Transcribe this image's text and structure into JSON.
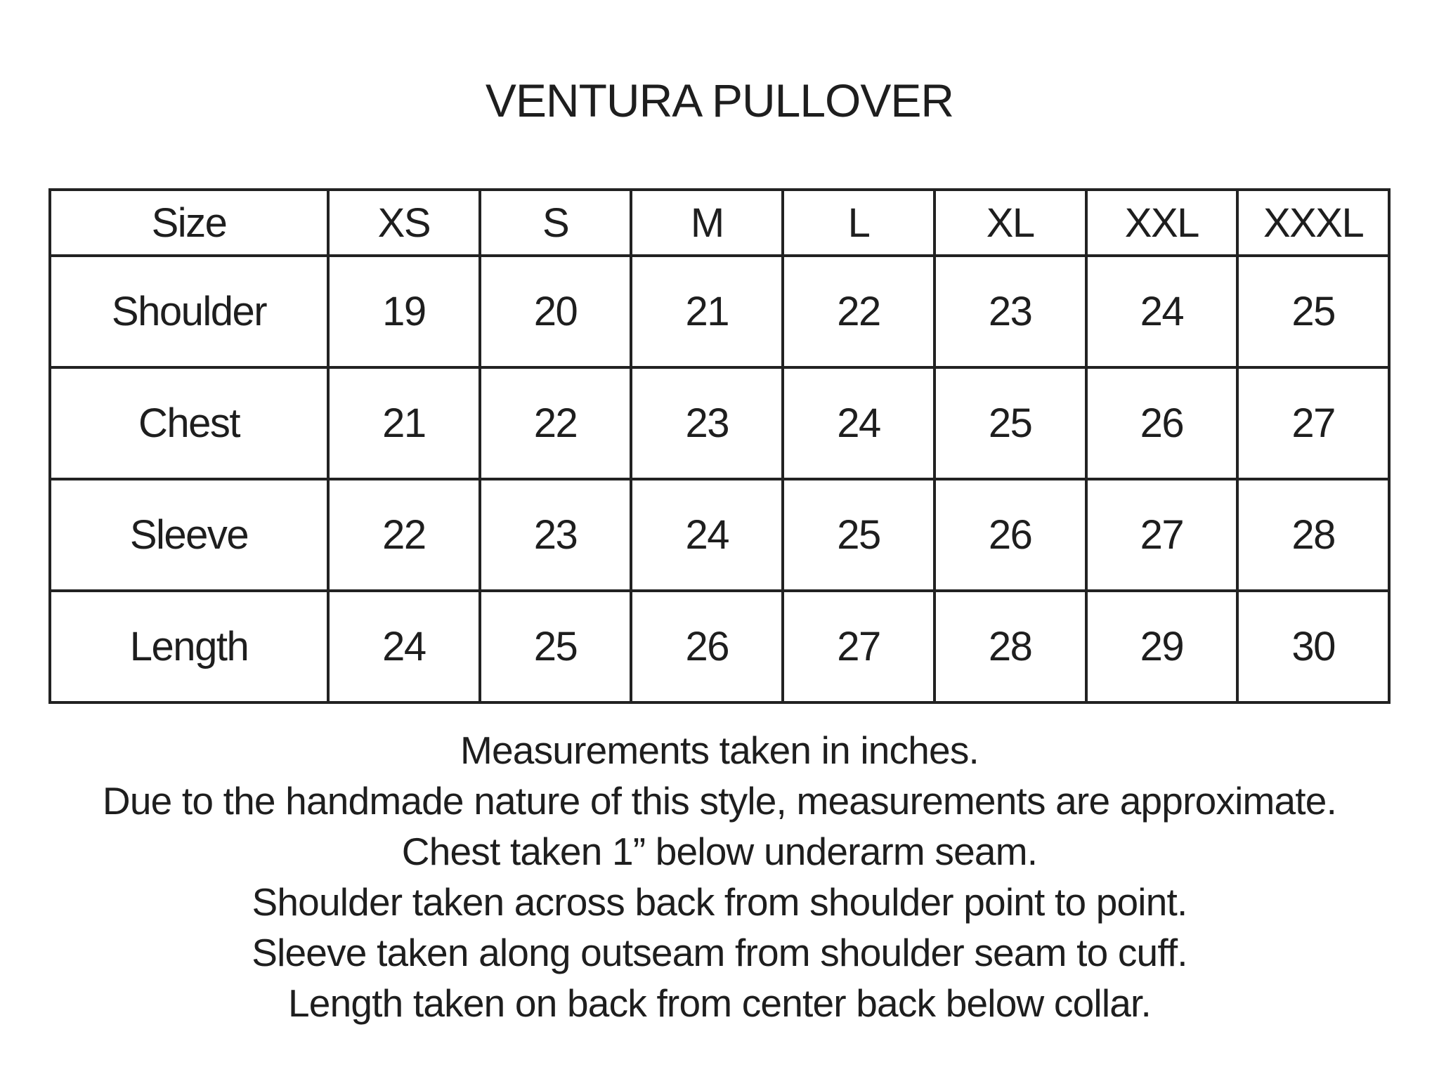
{
  "title": "VENTURA PULLOVER",
  "table": {
    "header": [
      "Size",
      "XS",
      "S",
      "M",
      "L",
      "XL",
      "XXL",
      "XXXL"
    ],
    "rows": [
      [
        "Shoulder",
        "19",
        "20",
        "21",
        "22",
        "23",
        "24",
        "25"
      ],
      [
        "Chest",
        "21",
        "22",
        "23",
        "24",
        "25",
        "26",
        "27"
      ],
      [
        "Sleeve",
        "22",
        "23",
        "24",
        "25",
        "26",
        "27",
        "28"
      ],
      [
        "Length",
        "24",
        "25",
        "26",
        "27",
        "28",
        "29",
        "30"
      ]
    ]
  },
  "notes": [
    "Measurements taken in inches.",
    "Due to the handmade nature of this style, measurements are approximate.",
    "Chest taken 1” below underarm seam.",
    "Shoulder taken across back from shoulder point to point.",
    "Sleeve taken along outseam from shoulder seam to cuff.",
    "Length taken on back from center back below collar."
  ]
}
